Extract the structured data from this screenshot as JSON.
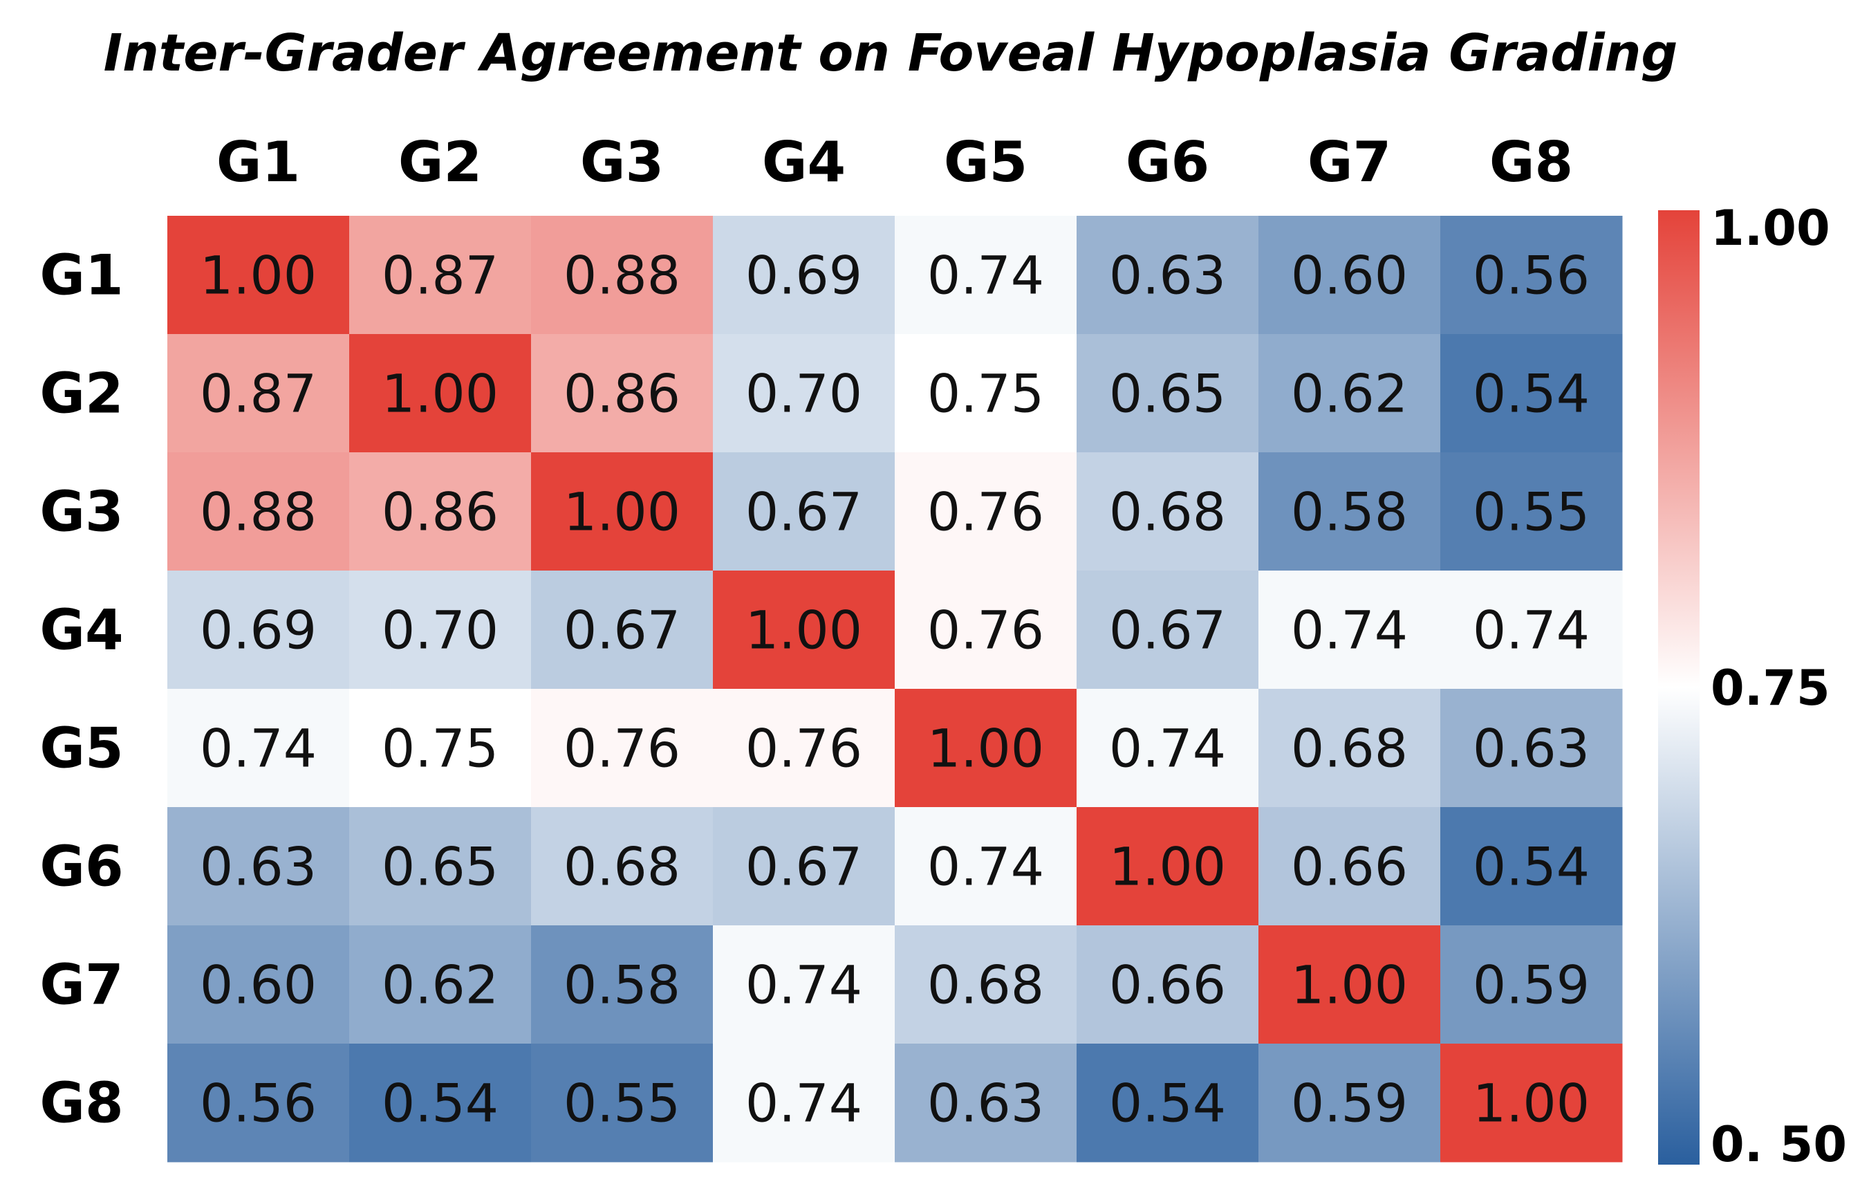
{
  "chart_data": {
    "type": "heatmap",
    "title": "Inter-Grader Agreement on Foveal Hypoplasia Grading",
    "xlabel": "",
    "ylabel": "",
    "columns": [
      "G1",
      "G2",
      "G3",
      "G4",
      "G5",
      "G6",
      "G7",
      "G8"
    ],
    "rows": [
      "G1",
      "G2",
      "G3",
      "G4",
      "G5",
      "G6",
      "G7",
      "G8"
    ],
    "values": [
      [
        1.0,
        0.87,
        0.88,
        0.69,
        0.74,
        0.63,
        0.6,
        0.56
      ],
      [
        0.87,
        1.0,
        0.86,
        0.7,
        0.75,
        0.65,
        0.62,
        0.54
      ],
      [
        0.88,
        0.86,
        1.0,
        0.67,
        0.76,
        0.68,
        0.58,
        0.55
      ],
      [
        0.69,
        0.7,
        0.67,
        1.0,
        0.76,
        0.67,
        0.74,
        0.74
      ],
      [
        0.74,
        0.75,
        0.76,
        0.76,
        1.0,
        0.74,
        0.68,
        0.63
      ],
      [
        0.63,
        0.65,
        0.68,
        0.67,
        0.74,
        1.0,
        0.66,
        0.54
      ],
      [
        0.6,
        0.62,
        0.58,
        0.74,
        0.68,
        0.66,
        1.0,
        0.59
      ],
      [
        0.56,
        0.54,
        0.55,
        0.74,
        0.63,
        0.54,
        0.59,
        1.0
      ]
    ],
    "value_labels": [
      [
        "1.00",
        "0.87",
        "0.88",
        "0.69",
        "0.74",
        "0.63",
        "0.60",
        "0.56"
      ],
      [
        "0.87",
        "1.00",
        "0.86",
        "0.70",
        "0.75",
        "0.65",
        "0.62",
        "0.54"
      ],
      [
        "0.88",
        "0.86",
        "1.00",
        "0.67",
        "0.76",
        "0.68",
        "0.58",
        "0.55"
      ],
      [
        "0.69",
        "0.70",
        "0.67",
        "1.00",
        "0.76",
        "0.67",
        "0.74",
        "0.74"
      ],
      [
        "0.74",
        "0.75",
        "0.76",
        "0.76",
        "1.00",
        "0.74",
        "0.68",
        "0.63"
      ],
      [
        "0.63",
        "0.65",
        "0.68",
        "0.67",
        "0.74",
        "1.00",
        "0.66",
        "0.54"
      ],
      [
        "0.60",
        "0.62",
        "0.58",
        "0.74",
        "0.68",
        "0.66",
        "1.00",
        "0.59"
      ],
      [
        "0.56",
        "0.54",
        "0.55",
        "0.74",
        "0.63",
        "0.54",
        "0.59",
        "1.00"
      ]
    ],
    "colorbar": {
      "min": 0.5,
      "center": 0.75,
      "max": 1.0,
      "tick_values": [
        1.0,
        0.75,
        0.5
      ],
      "tick_labels": [
        "1.00",
        "0.75",
        "0. 50"
      ],
      "colors": {
        "low": "#2a5f9e",
        "mid": "#ffffff",
        "high": "#e4433a"
      }
    },
    "column_labels_position": "top",
    "colorbar_position": "right",
    "grid": false
  }
}
